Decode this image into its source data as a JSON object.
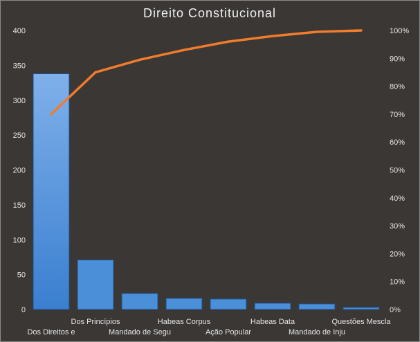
{
  "chart_data": {
    "type": "bar",
    "title": "Direito  Constitucional",
    "categories": [
      "Dos Direitos e",
      "Dos Princípios",
      "Mandado de Segu",
      "Habeas Corpus",
      "Ação Popular",
      "Habeas Data",
      "Mandado de Inju",
      "Questões Mescla"
    ],
    "series": [
      {
        "type": "bar",
        "values": [
          338,
          71,
          23,
          16,
          15,
          9,
          8,
          3
        ]
      },
      {
        "type": "line",
        "axis": "right",
        "values": [
          70,
          85,
          89.5,
          93,
          96,
          98,
          99.5,
          100
        ]
      }
    ],
    "y_left": {
      "lim": [
        0,
        400
      ],
      "ticks": [
        "0",
        "50",
        "100",
        "150",
        "200",
        "250",
        "300",
        "350",
        "400"
      ]
    },
    "y_right": {
      "lim": [
        0,
        100
      ],
      "ticks": [
        "0%",
        "10%",
        "20%",
        "30%",
        "40%",
        "50%",
        "60%",
        "70%",
        "80%",
        "90%",
        "100%"
      ]
    },
    "grid": false,
    "legend": "none",
    "colors": {
      "background": "#3a3735",
      "bar": "#4a8fd8",
      "bar_edge": "#1f4f8a",
      "line": "#f07c2c",
      "text": "#e6e6e6"
    }
  }
}
